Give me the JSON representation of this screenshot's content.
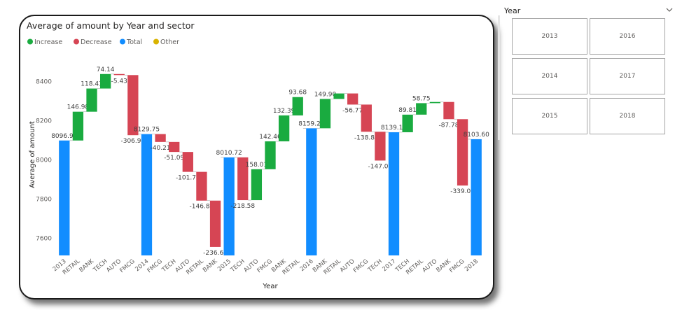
{
  "chart_data": {
    "type": "waterfall",
    "title": "Average of amount by Year and sector",
    "xlabel": "Year",
    "ylabel": "Average of amount",
    "legend": [
      {
        "label": "Increase",
        "color": "#1AAB40"
      },
      {
        "label": "Decrease",
        "color": "#D64554"
      },
      {
        "label": "Total",
        "color": "#118DFF"
      },
      {
        "label": "Other",
        "color": "#D9B300"
      }
    ],
    "yticks": [
      7600,
      7800,
      8000,
      8200,
      8400
    ],
    "ylim": [
      7510,
      8500
    ],
    "grid": false,
    "steps": [
      {
        "category": "2013",
        "kind": "total",
        "value": 8096.92,
        "label": "8096.92"
      },
      {
        "category": "RETAIL",
        "kind": "increase",
        "value": 146.98,
        "label": "146.98"
      },
      {
        "category": "BANK",
        "kind": "increase",
        "value": 118.41,
        "label": "118.41"
      },
      {
        "category": "TECH",
        "kind": "increase",
        "value": 74.14,
        "label": "74.14"
      },
      {
        "category": "AUTO",
        "kind": "decrease",
        "value": -5.43,
        "label": "-5.43"
      },
      {
        "category": "FMCG",
        "kind": "decrease",
        "value": -306.96,
        "label": "-306.96"
      },
      {
        "category": "2014",
        "kind": "total",
        "value": 8129.75,
        "label": "8129.75"
      },
      {
        "category": "FMCG",
        "kind": "decrease",
        "value": -40.21,
        "label": "-40.21"
      },
      {
        "category": "TECH",
        "kind": "decrease",
        "value": -51.09,
        "label": "-51.09"
      },
      {
        "category": "AUTO",
        "kind": "decrease",
        "value": -101.73,
        "label": "-101.73"
      },
      {
        "category": "RETAIL",
        "kind": "decrease",
        "value": -146.88,
        "label": "-146.88"
      },
      {
        "category": "BANK",
        "kind": "decrease",
        "value": -236.63,
        "label": "-236.63"
      },
      {
        "category": "2015",
        "kind": "total",
        "value": 8010.72,
        "label": "8010.72"
      },
      {
        "category": "TECH",
        "kind": "decrease",
        "value": -218.58,
        "label": "-218.58"
      },
      {
        "category": "AUTO",
        "kind": "increase",
        "value": 158.01,
        "label": "158.01"
      },
      {
        "category": "FMCG",
        "kind": "increase",
        "value": 142.46,
        "label": "142.46"
      },
      {
        "category": "BANK",
        "kind": "increase",
        "value": 132.39,
        "label": "132.39"
      },
      {
        "category": "RETAIL",
        "kind": "increase",
        "value": 93.68,
        "label": "93.68"
      },
      {
        "category": "2016",
        "kind": "total",
        "value": 8159.28,
        "label": "8159.28"
      },
      {
        "category": "BANK",
        "kind": "increase",
        "value": 149.9,
        "label": "149.90"
      },
      {
        "category": "RETAIL",
        "kind": "increase",
        "value": 28.0,
        "label": ""
      },
      {
        "category": "AUTO",
        "kind": "decrease",
        "value": -56.77,
        "label": "-56.77"
      },
      {
        "category": "FMCG",
        "kind": "decrease",
        "value": -138.82,
        "label": "-138.82"
      },
      {
        "category": "TECH",
        "kind": "decrease",
        "value": -147.07,
        "label": "-147.07"
      },
      {
        "category": "2017",
        "kind": "total",
        "value": 8139.15,
        "label": "8139.15"
      },
      {
        "category": "TECH",
        "kind": "increase",
        "value": 89.81,
        "label": "89.81"
      },
      {
        "category": "RETAIL",
        "kind": "increase",
        "value": 58.75,
        "label": "58.75"
      },
      {
        "category": "AUTO",
        "kind": "increase",
        "value": 6.0,
        "label": ""
      },
      {
        "category": "BANK",
        "kind": "decrease",
        "value": -87.78,
        "label": "-87.78"
      },
      {
        "category": "FMCG",
        "kind": "decrease",
        "value": -339.06,
        "label": "-339.06"
      },
      {
        "category": "2018",
        "kind": "total",
        "value": 8103.6,
        "label": "8103.60"
      }
    ]
  },
  "slicer": {
    "title": "Year",
    "options": [
      "2013",
      "2016",
      "2014",
      "2017",
      "2015",
      "2018"
    ]
  }
}
